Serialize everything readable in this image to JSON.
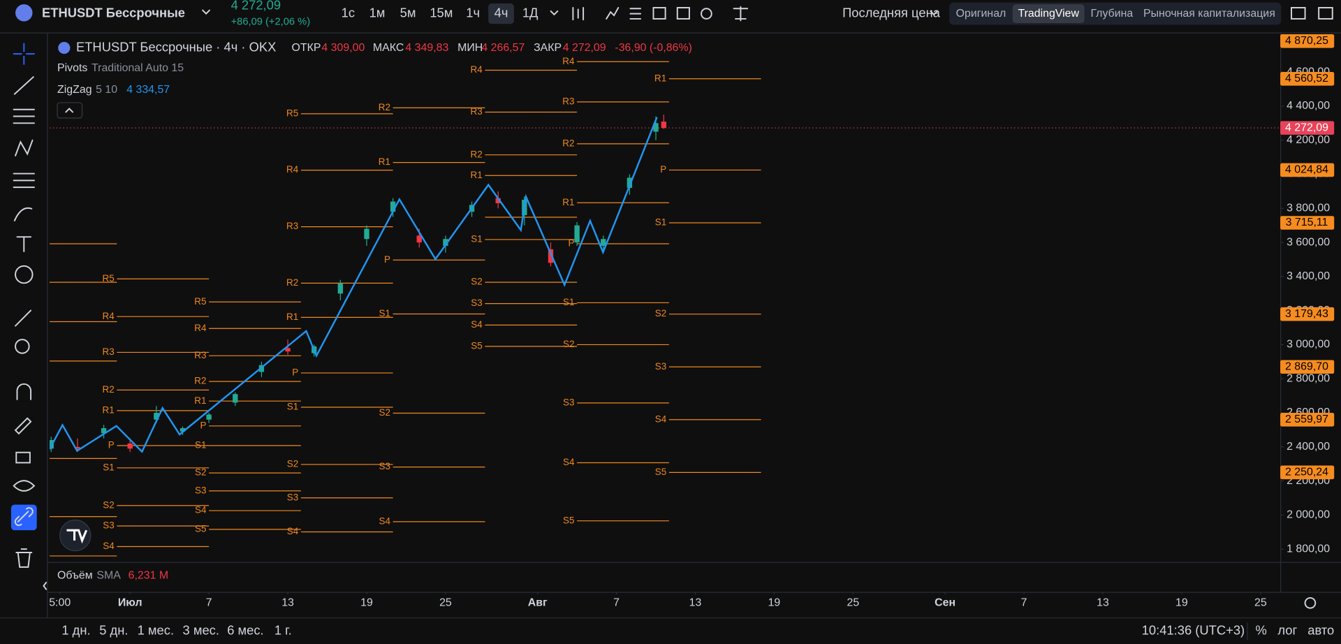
{
  "toolbar": {
    "symbol": "ETHUSDT Бессрочные",
    "price": "4 272,09",
    "change": "+86,09 (+2,06 %)",
    "intervals": [
      "1с",
      "1м",
      "5м",
      "15м",
      "1ч",
      "4ч",
      "1Д"
    ],
    "price_source": "Последняя цена",
    "views": [
      "Оригинал",
      "TradingView",
      "Глубина",
      "Рыночная капитализация"
    ]
  },
  "legend": {
    "title": "ETHUSDT Бессрочные · 4ч · OKX",
    "open_label": "ОТКР",
    "open": "4 309,00",
    "high_label": "МАКС",
    "high": "4 349,83",
    "low_label": "МИН",
    "low": "4 266,57",
    "close_label": "ЗАКР",
    "close": "4 272,09",
    "change": "-36,90 (-0,86%)",
    "pivots_name": "Pivots",
    "pivots_params": "Traditional Auto 15",
    "zigzag_name": "ZigZag",
    "zigzag_params": "5 10",
    "zigzag_value": "4 334,57"
  },
  "volume": {
    "name": "Объём",
    "params": "SMA",
    "value": "6,231 M"
  },
  "bottom": {
    "ranges": [
      "1 дн.",
      "5 дн.",
      "1 мес.",
      "3 мес.",
      "6 мес.",
      "1 г."
    ],
    "time": "10:41:36 (UTC+3)",
    "percent": "%",
    "log": "лог",
    "auto": "авто"
  },
  "chart_data": {
    "type": "candlestick",
    "up_color": "#22ab94",
    "down_color": "#f23645",
    "x": [
      -6,
      -4,
      -2,
      0,
      2,
      4,
      6,
      8,
      10,
      12,
      14,
      16,
      18,
      20,
      22,
      24,
      26,
      28,
      30,
      32,
      34,
      36,
      38,
      40,
      40.6
    ],
    "open": [
      2390,
      2400,
      2480,
      2420,
      2560,
      2490,
      2560,
      2660,
      2840,
      2980,
      2950,
      3300,
      3620,
      3780,
      3640,
      3580,
      3780,
      3860,
      3760,
      3560,
      3600,
      3580,
      3920,
      4250,
      4309
    ],
    "high": [
      2460,
      2450,
      2530,
      2450,
      2640,
      2520,
      2600,
      2720,
      2900,
      3030,
      3000,
      3380,
      3700,
      3860,
      3680,
      3640,
      3840,
      3900,
      3870,
      3600,
      3720,
      3640,
      4000,
      4340,
      4349.83
    ],
    "low": [
      2370,
      2370,
      2450,
      2370,
      2540,
      2470,
      2540,
      2640,
      2810,
      2940,
      2930,
      3260,
      3580,
      3750,
      3570,
      3540,
      3750,
      3800,
      3700,
      3460,
      3580,
      3540,
      3880,
      4200,
      4266.57
    ],
    "close": [
      2440,
      2390,
      2510,
      2390,
      2600,
      2510,
      2590,
      2710,
      2880,
      2960,
      2990,
      3360,
      3680,
      3840,
      3600,
      3620,
      3820,
      3830,
      3850,
      3480,
      3700,
      3620,
      3980,
      4300,
      4272.09
    ],
    "zigzag": {
      "color": "#2196f3",
      "x": [
        -6.12,
        -5.14,
        -4.03,
        -1.04,
        0.91,
        2.47,
        3.77,
        13.4,
        14.18,
        20.49,
        23.23,
        27.26,
        29.73,
        30.12,
        33.05,
        35.0,
        35.98,
        40.08
      ],
      "values": [
        2387,
        2528,
        2377,
        2523,
        2372,
        2628,
        2473,
        3080,
        2935,
        3853,
        3502,
        3938,
        3672,
        3868,
        3351,
        3727,
        3542,
        4334.57
      ]
    },
    "pivots": {
      "color": "#f0891e",
      "periods": [
        {
          "start": -8,
          "end": -1,
          "names": [
            null,
            null,
            null,
            null,
            null,
            null,
            null
          ],
          "values": [
            3592,
            3366,
            3135,
            2904,
            2332,
            1991,
            1760
          ]
        },
        {
          "start": -1,
          "end": 6,
          "names": [
            "R5",
            "R4",
            "R3",
            "R2",
            "R1",
            "P",
            "S1",
            "S2",
            "S3",
            "S4"
          ],
          "values": [
            3386,
            3165,
            2955,
            2734,
            2613,
            2408,
            2277,
            2056,
            1936,
            1815
          ]
        },
        {
          "start": 6,
          "end": 13,
          "names": [
            "R5",
            "R4",
            "R3",
            "R2",
            "R1",
            "P",
            "S1",
            "S2",
            "S3",
            "S4",
            "S5"
          ],
          "values": [
            3251,
            3095,
            2935,
            2784,
            2669,
            2523,
            2408,
            2247,
            2142,
            2026,
            1916
          ]
        },
        {
          "start": 13,
          "end": 20,
          "names": [
            "R5",
            "R4",
            "R3",
            "R2",
            "R1",
            "P",
            "S1",
            "S2",
            "S3",
            "S4"
          ],
          "values": [
            4355,
            4024,
            3692,
            3361,
            3160,
            2834,
            2633,
            2297,
            2101,
            1901
          ]
        },
        {
          "start": 20,
          "end": 27,
          "names": [
            "R2",
            "R1",
            "P",
            "S1",
            "S2",
            "S3",
            "S4"
          ],
          "values": [
            4390,
            4069,
            3497,
            3180,
            2598,
            2282,
            1961
          ]
        },
        {
          "start": 27,
          "end": 34,
          "names": [
            "R4",
            "R3",
            "R2",
            "R1",
            null,
            "S1",
            "S2",
            "S3",
            "S4",
            "S5"
          ],
          "values": [
            4611,
            4365,
            4114,
            3993,
            3748,
            3617,
            3366,
            3241,
            3115,
            2990
          ]
        },
        {
          "start": 34,
          "end": 41,
          "names": [
            "R4",
            "R3",
            "R2",
            "R1",
            "P",
            "S1",
            "S2",
            "S3",
            "S4",
            "S5"
          ],
          "values": [
            4661,
            4425,
            4179,
            3833,
            3592,
            3246,
            3000,
            2658,
            2307,
            1966
          ]
        },
        {
          "start": 41,
          "end": 48,
          "names": [
            null,
            "R1",
            "P",
            "S1",
            "S2",
            "S3",
            "S4",
            "S5"
          ],
          "values": [
            4870.25,
            4560.52,
            4024.84,
            3715.11,
            3179.43,
            2869.7,
            2559.97,
            2250.24
          ],
          "value_labels": [
            "4 870,25",
            "4 560,52",
            "4 024,84",
            "3 715,11",
            "3 179,43",
            "2 869,70",
            "2 559,97",
            "2 250,24"
          ]
        }
      ]
    },
    "last_price": {
      "value": 4272.09,
      "label": "4 272,09",
      "color": "#e8435a"
    },
    "xlim": [
      -6.12,
      87.5
    ],
    "xticks": [
      {
        "value": -5.34,
        "label": "5:00"
      },
      {
        "value": 0,
        "label": "Июл"
      },
      {
        "value": 6,
        "label": "7"
      },
      {
        "value": 12,
        "label": "13"
      },
      {
        "value": 18,
        "label": "19"
      },
      {
        "value": 24,
        "label": "25"
      },
      {
        "value": 31,
        "label": "Авг"
      },
      {
        "value": 37,
        "label": "7"
      },
      {
        "value": 43,
        "label": "13"
      },
      {
        "value": 49,
        "label": "19"
      },
      {
        "value": 55,
        "label": "25"
      },
      {
        "value": 62,
        "label": "Сен"
      },
      {
        "value": 68,
        "label": "7"
      },
      {
        "value": 74,
        "label": "13"
      },
      {
        "value": 80,
        "label": "19"
      },
      {
        "value": 86,
        "label": "25"
      }
    ],
    "ylim": [
      1735,
      4822
    ],
    "yticks": [
      {
        "value": 1800,
        "label": "1 800,00"
      },
      {
        "value": 2000,
        "label": "2 000,00"
      },
      {
        "value": 2200,
        "label": "2 200,00"
      },
      {
        "value": 2400,
        "label": "2 400,00"
      },
      {
        "value": 2600,
        "label": "2 600,00"
      },
      {
        "value": 2800,
        "label": "2 800,00"
      },
      {
        "value": 3000,
        "label": "3 000,00"
      },
      {
        "value": 3200,
        "label": "3 200,00"
      },
      {
        "value": 3400,
        "label": "3 400,00"
      },
      {
        "value": 3600,
        "label": "3 600,00"
      },
      {
        "value": 3800,
        "label": "3 800,00"
      },
      {
        "value": 4000,
        "label": "4 000,00"
      },
      {
        "value": 4200,
        "label": "4 200,00"
      },
      {
        "value": 4400,
        "label": "4 400,00"
      },
      {
        "value": 4600,
        "label": "4 600,00"
      }
    ],
    "grid": false
  }
}
